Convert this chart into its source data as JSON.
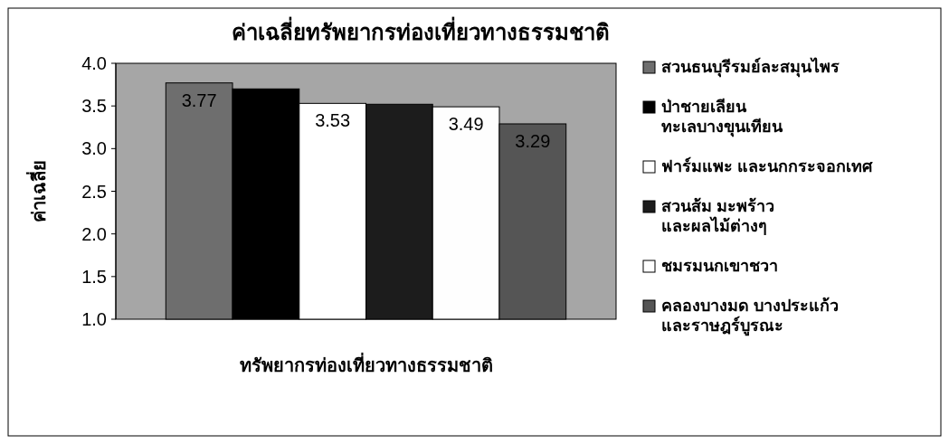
{
  "chart_data": {
    "type": "bar",
    "title": "ค่าเฉลี่ยทรัพยากรท่องเที่ยวทางธรรมชาติ",
    "xlabel": "ทรัพยากรท่องเที่ยวทางธรรมชาติ",
    "ylabel": "ค่าเฉลี่ย",
    "categories": [
      null
    ],
    "ylim": [
      1,
      4
    ],
    "yticks": [
      {
        "value": 1,
        "label": "1.0"
      },
      {
        "value": 1.5,
        "label": "1.5"
      },
      {
        "value": 2,
        "label": "2.0"
      },
      {
        "value": 2.5,
        "label": "2.5"
      },
      {
        "value": 3,
        "label": "3.0"
      },
      {
        "value": 3.5,
        "label": "3.5"
      },
      {
        "value": 4,
        "label": "4.0"
      }
    ],
    "legend": "right",
    "series": [
      {
        "name": "สวนธนบุรีรมย์ละสมุนไพร",
        "color": "#6e6e6e",
        "values": [
          3.77
        ],
        "value_labels": [
          "3.77"
        ]
      },
      {
        "name": "ป่าชายเลียน ทะเลบางขุนเทียน",
        "color": "#000000",
        "values": [
          3.7
        ],
        "value_labels": [
          null
        ]
      },
      {
        "name": "ฟาร์มแพะ และนกกระจอกเทศ",
        "color": "#ffffff",
        "values": [
          3.53
        ],
        "value_labels": [
          "3.53"
        ]
      },
      {
        "name": "สวนส้ม มะพร้าว และผลไม้ต่างๆ",
        "color": "#1c1c1c",
        "values": [
          3.52
        ],
        "value_labels": [
          null
        ]
      },
      {
        "name": "ชมรมนกเขาชวา",
        "color": "#fefefe",
        "values": [
          3.49
        ],
        "value_labels": [
          "3.49"
        ]
      },
      {
        "name": "คลองบางมด บางประแก้ว และราษฎร์บูรณะ",
        "color": "#555555",
        "values": [
          3.29
        ],
        "value_labels": [
          "3.29"
        ]
      }
    ]
  }
}
